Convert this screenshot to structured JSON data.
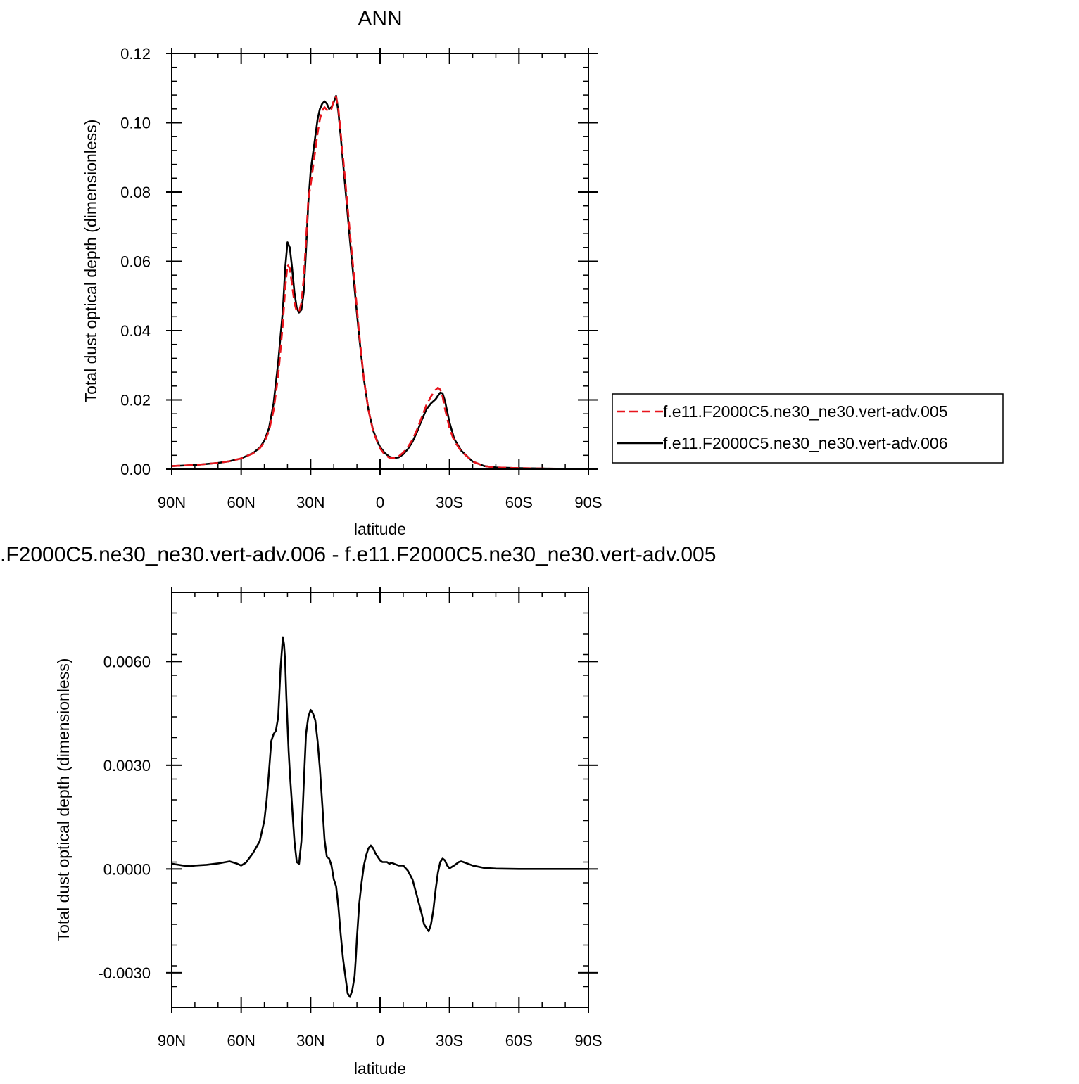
{
  "chart_data": [
    {
      "type": "line",
      "title": "ANN",
      "xlabel": "latitude",
      "ylabel": "Total dust optical depth (dimensionless)",
      "xlim": [
        90,
        -90
      ],
      "ylim": [
        0,
        0.12
      ],
      "x_ticks": [
        90,
        60,
        30,
        0,
        -30,
        -60,
        -90
      ],
      "x_tick_labels": [
        "90N",
        "60N",
        "30N",
        "0",
        "30S",
        "60S",
        "90S"
      ],
      "y_ticks": [
        0,
        0.02,
        0.04,
        0.06,
        0.08,
        0.1,
        0.12
      ],
      "y_tick_labels": [
        "0.00",
        "0.02",
        "0.04",
        "0.06",
        "0.08",
        "0.10",
        "0.12"
      ],
      "legend_position": "right",
      "series": [
        {
          "name": "f.e11.F2000C5.ne30_ne30.vert-adv.005",
          "color": "#e8141c",
          "dash": "dashed",
          "x": [
            90,
            80,
            70,
            65,
            60,
            55,
            52,
            50,
            48,
            46,
            44,
            42,
            41,
            40,
            39,
            38,
            37,
            36,
            35,
            34,
            33,
            32,
            31,
            30,
            28,
            27,
            26,
            25,
            24,
            23,
            22,
            21,
            20,
            19,
            18,
            17,
            15,
            13,
            11,
            9,
            7,
            5,
            3,
            1,
            0,
            -2,
            -4,
            -6,
            -8,
            -10,
            -12,
            -14,
            -16,
            -18,
            -20,
            -22,
            -24,
            -25,
            -26,
            -27,
            -28,
            -30,
            -32,
            -35,
            -40,
            -45,
            -50,
            -60,
            -70,
            -80,
            -90
          ],
          "y": [
            0.0009,
            0.0012,
            0.0018,
            0.0023,
            0.0031,
            0.0045,
            0.006,
            0.0078,
            0.011,
            0.017,
            0.027,
            0.042,
            0.052,
            0.059,
            0.058,
            0.053,
            0.048,
            0.0455,
            0.0455,
            0.048,
            0.055,
            0.066,
            0.078,
            0.082,
            0.092,
            0.097,
            0.101,
            0.1035,
            0.1045,
            0.1037,
            0.1033,
            0.104,
            0.1065,
            0.1075,
            0.104,
            0.097,
            0.083,
            0.068,
            0.054,
            0.039,
            0.026,
            0.017,
            0.011,
            0.0075,
            0.006,
            0.0042,
            0.0033,
            0.0032,
            0.0037,
            0.0048,
            0.0064,
            0.0085,
            0.0115,
            0.015,
            0.0185,
            0.021,
            0.0229,
            0.0235,
            0.023,
            0.021,
            0.0175,
            0.0118,
            0.0082,
            0.0052,
            0.0022,
            0.0009,
            0.0005,
            0.0003,
            0.0002,
            0.0001,
            0.0001
          ]
        },
        {
          "name": "f.e11.F2000C5.ne30_ne30.vert-adv.006",
          "color": "#000000",
          "dash": "solid",
          "x": [
            90,
            80,
            70,
            65,
            60,
            55,
            52,
            50,
            48,
            46,
            44,
            42,
            41,
            40,
            39,
            38,
            37,
            36,
            35,
            34,
            33,
            32,
            31,
            30,
            28,
            27,
            26,
            25,
            24,
            23,
            22,
            21,
            20,
            19,
            18,
            17,
            15,
            13,
            11,
            9,
            7,
            5,
            3,
            1,
            0,
            -2,
            -4,
            -6,
            -8,
            -10,
            -12,
            -14,
            -16,
            -18,
            -20,
            -22,
            -24,
            -25,
            -26,
            -27,
            -28,
            -30,
            -32,
            -35,
            -40,
            -45,
            -50,
            -60,
            -70,
            -80,
            -90
          ],
          "y": [
            0.0009,
            0.0012,
            0.0018,
            0.0023,
            0.0031,
            0.0046,
            0.0062,
            0.0082,
            0.0118,
            0.019,
            0.031,
            0.046,
            0.058,
            0.0655,
            0.064,
            0.058,
            0.051,
            0.0465,
            0.0452,
            0.046,
            0.051,
            0.063,
            0.077,
            0.086,
            0.096,
            0.101,
            0.104,
            0.1055,
            0.1062,
            0.1055,
            0.104,
            0.1045,
            0.106,
            0.1078,
            0.103,
            0.096,
            0.081,
            0.066,
            0.052,
            0.038,
            0.026,
            0.017,
            0.0112,
            0.0078,
            0.0064,
            0.0047,
            0.0036,
            0.0032,
            0.0034,
            0.0043,
            0.0058,
            0.0079,
            0.0108,
            0.0142,
            0.0173,
            0.019,
            0.0202,
            0.0212,
            0.0221,
            0.0219,
            0.0198,
            0.0135,
            0.0088,
            0.0054,
            0.0022,
            0.0009,
            0.0005,
            0.0003,
            0.0002,
            0.0001,
            0.0001
          ]
        }
      ]
    },
    {
      "type": "line",
      "title": ".F2000C5.ne30_ne30.vert-adv.006 - f.e11.F2000C5.ne30_ne30.vert-adv.005",
      "xlabel": "latitude",
      "ylabel": "Total dust optical depth (dimensionless)",
      "xlim": [
        90,
        -90
      ],
      "ylim": [
        -0.004,
        0.008
      ],
      "x_ticks": [
        90,
        60,
        30,
        0,
        -30,
        -60,
        -90
      ],
      "x_tick_labels": [
        "90N",
        "60N",
        "30N",
        "0",
        "30S",
        "60S",
        "90S"
      ],
      "y_ticks": [
        -0.003,
        0,
        0.003,
        0.006
      ],
      "y_tick_labels": [
        "-0.0030",
        "0.0000",
        "0.0030",
        "0.0060"
      ],
      "series": [
        {
          "color": "#000000",
          "dash": "solid",
          "x": [
            90,
            85,
            82,
            80,
            75,
            70,
            65,
            62,
            60,
            58,
            55,
            52,
            50,
            49,
            48,
            47,
            46,
            45,
            44,
            43,
            42,
            41.5,
            41,
            40.5,
            40,
            39.5,
            39,
            38,
            37,
            36,
            35,
            34,
            33,
            32,
            31,
            30,
            29,
            28,
            27,
            26,
            25.5,
            25,
            24,
            23,
            22,
            21,
            20,
            19.5,
            19,
            18.5,
            18,
            17.5,
            17,
            16,
            15,
            14,
            13,
            12,
            11,
            10.5,
            10,
            9,
            8,
            7,
            6,
            5,
            4,
            3,
            2,
            1,
            0,
            -1,
            -2,
            -3,
            -4,
            -5,
            -6,
            -8,
            -10,
            -12,
            -14,
            -16,
            -18,
            -19,
            -20,
            -21,
            -22,
            -23,
            -24,
            -25,
            -26,
            -27,
            -28,
            -29,
            -30,
            -32,
            -34,
            -35,
            -36,
            -38,
            -40,
            -45,
            -50,
            -60,
            -70,
            -80,
            -90
          ],
          "y": [
            0.00015,
            0.0001,
            8e-05,
            0.0001,
            0.00012,
            0.00016,
            0.00022,
            0.00016,
            0.0001,
            0.00018,
            0.00045,
            0.0008,
            0.0014,
            0.002,
            0.0028,
            0.0037,
            0.0039,
            0.004,
            0.0044,
            0.0058,
            0.0067,
            0.0065,
            0.006,
            0.005,
            0.0042,
            0.0034,
            0.0028,
            0.0018,
            0.0008,
            0.0002,
            0.00015,
            0.0008,
            0.0024,
            0.0039,
            0.0044,
            0.0046,
            0.0045,
            0.0043,
            0.0037,
            0.0029,
            0.0024,
            0.0019,
            0.00085,
            0.00035,
            0.0003,
            0.0001,
            -0.0003,
            -0.0004,
            -0.0005,
            -0.0008,
            -0.0011,
            -0.0015,
            -0.0019,
            -0.0026,
            -0.0031,
            -0.0036,
            -0.0037,
            -0.0035,
            -0.0031,
            -0.0026,
            -0.002,
            -0.001,
            -0.0004,
            0.0001,
            0.0004,
            0.0006,
            0.00068,
            0.0006,
            0.00045,
            0.00035,
            0.00025,
            0.0002,
            0.0002,
            0.0002,
            0.00015,
            0.00018,
            0.00015,
            0.0001,
            0.0001,
            -5e-05,
            -0.0003,
            -0.0008,
            -0.0013,
            -0.0016,
            -0.0017,
            -0.0018,
            -0.0016,
            -0.0012,
            -0.0006,
            -0.0001,
            0.0002,
            0.0003,
            0.00025,
            0.0001,
            2e-05,
            0.0001,
            0.0002,
            0.00022,
            0.0002,
            0.00015,
            0.0001,
            3e-05,
            1e-05,
            0.0,
            0.0,
            0.0,
            0.0
          ]
        }
      ]
    }
  ]
}
